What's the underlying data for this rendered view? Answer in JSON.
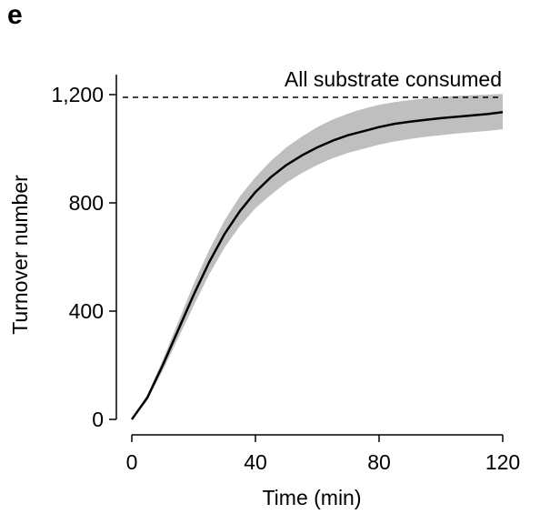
{
  "panel_label": "e",
  "chart_data": {
    "type": "line",
    "title": "",
    "xlabel": "Time (min)",
    "ylabel": "Turnover number",
    "xlim": [
      0,
      120
    ],
    "ylim": [
      0,
      1200
    ],
    "xticks": [
      0,
      40,
      80,
      120
    ],
    "xtick_labels": [
      "0",
      "40",
      "80",
      "120"
    ],
    "yticks": [
      0,
      400,
      800,
      1200
    ],
    "ytick_labels": [
      "0",
      "400",
      "800",
      "1,200"
    ],
    "grid": false,
    "legend": "none",
    "reference_line": {
      "y": 1190,
      "style": "dashed",
      "label": "All substrate consumed"
    },
    "series": [
      {
        "x": [
          0,
          5,
          10,
          15,
          20,
          25,
          30,
          35,
          40,
          45,
          50,
          55,
          60,
          65,
          70,
          75,
          80,
          85,
          90,
          95,
          100,
          105,
          110,
          115,
          120
        ],
        "mean": [
          0,
          80,
          200,
          330,
          460,
          580,
          685,
          770,
          840,
          895,
          940,
          975,
          1005,
          1030,
          1050,
          1065,
          1080,
          1092,
          1100,
          1107,
          1113,
          1118,
          1123,
          1128,
          1135
        ],
        "lower": [
          0,
          70,
          180,
          300,
          420,
          535,
          635,
          715,
          780,
          830,
          875,
          910,
          940,
          965,
          985,
          1000,
          1015,
          1027,
          1036,
          1044,
          1050,
          1056,
          1061,
          1066,
          1072
        ],
        "upper": [
          0,
          90,
          220,
          360,
          500,
          625,
          735,
          825,
          895,
          955,
          1005,
          1045,
          1080,
          1108,
          1130,
          1148,
          1162,
          1172,
          1180,
          1186,
          1191,
          1195,
          1198,
          1200,
          1202
        ],
        "line_color": "#000000",
        "band_color": "#bfbfbf"
      }
    ]
  }
}
